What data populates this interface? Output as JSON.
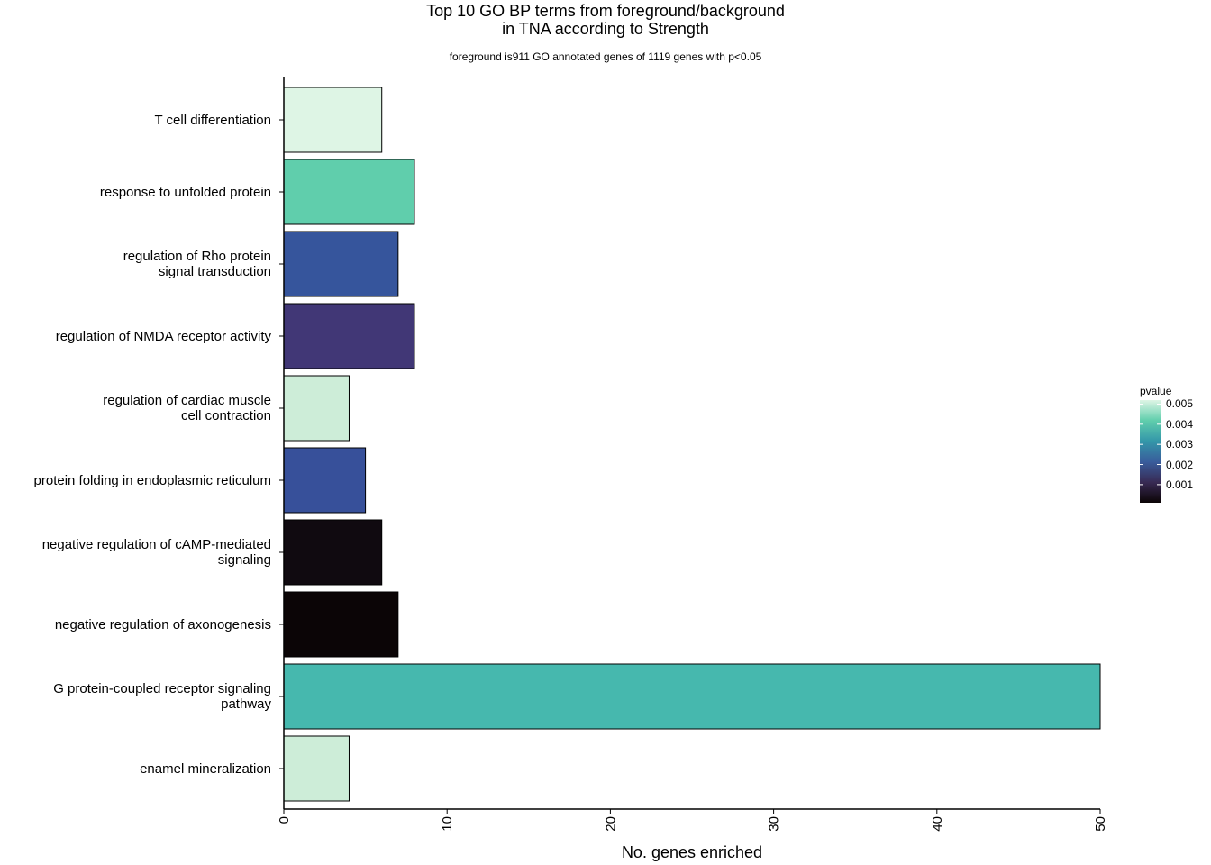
{
  "title_lines": [
    "Top 10 GO BP terms from foreground/background",
    "in TNA according to Strength"
  ],
  "subtitle": "foreground is911 GO annotated genes of 1119 genes with p<0.05",
  "chart_data": {
    "type": "bar",
    "orientation": "horizontal",
    "title": "Top 10 GO BP terms from foreground/background in TNA according to Strength",
    "subtitle": "foreground is911 GO annotated genes of 1119 genes with p<0.05",
    "xlabel": "No. genes enriched",
    "ylabel": "",
    "xlim": [
      0,
      50
    ],
    "x_ticks": [
      "0",
      "10",
      "20",
      "30",
      "40",
      "50"
    ],
    "grid": false,
    "categories": [
      [
        "T cell differentiation"
      ],
      [
        "response to unfolded protein"
      ],
      [
        "regulation of Rho protein",
        "signal transduction"
      ],
      [
        "regulation of NMDA receptor activity"
      ],
      [
        "regulation of cardiac muscle",
        "cell contraction"
      ],
      [
        "protein folding in endoplasmic reticulum"
      ],
      [
        "negative regulation of cAMP-mediated",
        "signaling"
      ],
      [
        "negative regulation of axonogenesis"
      ],
      [
        "G protein-coupled receptor signaling",
        "pathway"
      ],
      [
        "enamel mineralization"
      ]
    ],
    "values": [
      6,
      8,
      7,
      8,
      4,
      5,
      6,
      7,
      50,
      4
    ],
    "pvalues": [
      0.0052,
      0.0038,
      0.0022,
      0.0016,
      0.0049,
      0.0022,
      0.0003,
      0.0001,
      0.0034,
      0.0049
    ],
    "bar_colors": [
      "#DEF5E5",
      "#60CEAC",
      "#36559C",
      "#413776",
      "#CDEDD8",
      "#37509A",
      "#100A10",
      "#0B0506",
      "#46B8AE",
      "#CDEDD8"
    ],
    "legend": {
      "title": "pvalue",
      "position": "right",
      "ticks": [
        "0.005",
        "0.004",
        "0.003",
        "0.002",
        "0.001"
      ],
      "tick_values": [
        0.005,
        0.004,
        0.003,
        0.002,
        0.001
      ],
      "range": [
        0.0001,
        0.0052
      ],
      "colors": [
        "#0B0405",
        "#382A54",
        "#395D9C",
        "#3497A9",
        "#60CEAC",
        "#DEF5E5"
      ]
    }
  }
}
